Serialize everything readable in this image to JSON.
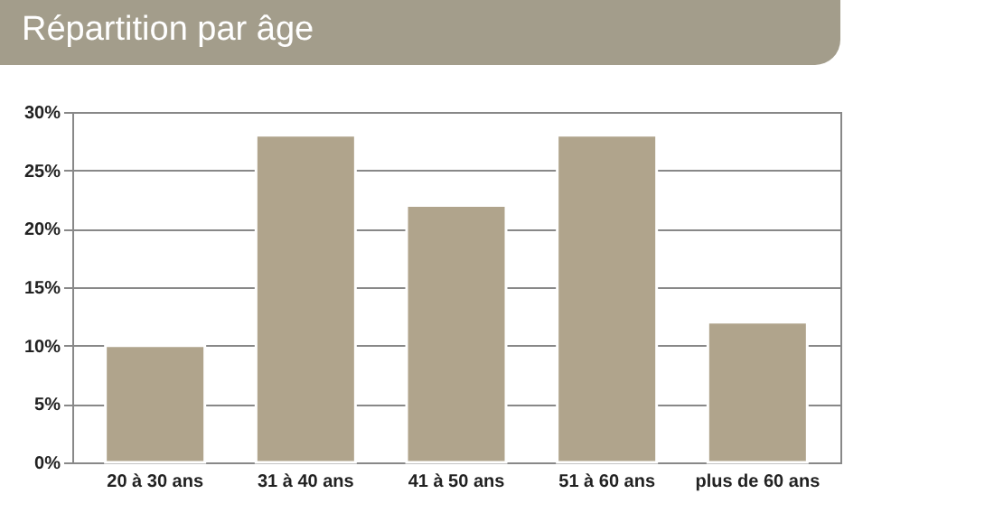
{
  "chart_data": {
    "type": "bar",
    "title": "Répartition par âge",
    "categories": [
      "20 à 30 ans",
      "31 à 40 ans",
      "41 à 50 ans",
      "51 à 60 ans",
      "plus de 60 ans"
    ],
    "values": [
      10,
      28,
      22,
      28,
      12
    ],
    "color": "#b0a48c",
    "ylim": [
      0,
      30
    ],
    "yticks": [
      {
        "value": 0,
        "label": "0%"
      },
      {
        "value": 5,
        "label": "5%"
      },
      {
        "value": 10,
        "label": "10%"
      },
      {
        "value": 15,
        "label": "15%"
      },
      {
        "value": 20,
        "label": "20%"
      },
      {
        "value": 25,
        "label": "25%"
      },
      {
        "value": 30,
        "label": "30%"
      }
    ],
    "grid": true
  }
}
